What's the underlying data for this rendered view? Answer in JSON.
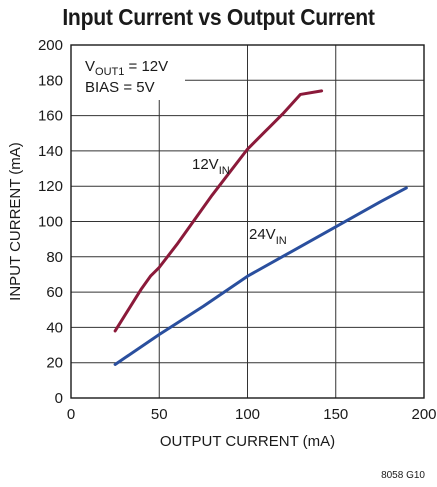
{
  "chart_data": {
    "type": "line",
    "title": "Input Current vs Output Current",
    "xlabel": "OUTPUT CURRENT (mA)",
    "ylabel": "INPUT CURRENT (mA)",
    "xlim": [
      0,
      200
    ],
    "ylim": [
      0,
      200
    ],
    "x_ticks": [
      0,
      50,
      100,
      150,
      200
    ],
    "y_ticks": [
      0,
      20,
      40,
      60,
      80,
      100,
      120,
      140,
      160,
      180,
      200
    ],
    "grid": true,
    "conditions": [
      "V_OUT1 = 12V",
      "BIAS = 5V"
    ],
    "conditions_parts": {
      "vout_prefix": "V",
      "vout_sub": "OUT1",
      "vout_value": " = 12V",
      "bias": "BIAS = 5V"
    },
    "series": [
      {
        "name": "12V_IN",
        "label_main": "12V",
        "label_sub": "IN",
        "color": "#8b1a3a",
        "x": [
          25,
          30,
          35,
          40,
          45,
          50,
          60,
          70,
          80,
          90,
          100,
          110,
          120,
          130,
          142
        ],
        "y": [
          38,
          46,
          54,
          62,
          69,
          74,
          87,
          101,
          115,
          128,
          141,
          151,
          161,
          172,
          174
        ]
      },
      {
        "name": "24V_IN",
        "label_main": "24V",
        "label_sub": "IN",
        "color": "#2a4f9e",
        "x": [
          25,
          50,
          75,
          100,
          125,
          150,
          175,
          190
        ],
        "y": [
          19,
          36,
          52,
          69,
          83,
          97,
          111,
          119
        ]
      }
    ]
  },
  "figure_id": "8058 G10"
}
